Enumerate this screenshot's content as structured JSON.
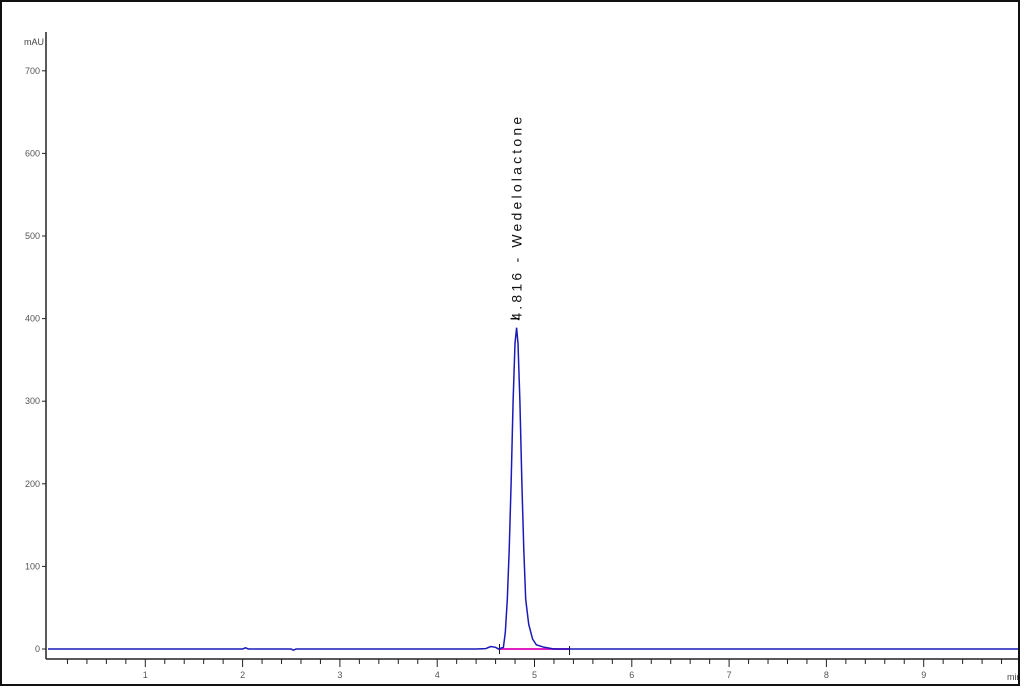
{
  "chart_data": {
    "type": "line",
    "title": "",
    "xlabel": "min",
    "ylabel": "mAU",
    "xlim": [
      0,
      10
    ],
    "ylim": [
      -5,
      740
    ],
    "x_ticks": [
      1,
      2,
      3,
      4,
      5,
      6,
      7,
      8,
      9
    ],
    "y_ticks": [
      0,
      100,
      200,
      300,
      400,
      500,
      600,
      700
    ],
    "grid": false,
    "colors": {
      "trace": "#1a1ab8",
      "baseline": "#e020c0",
      "axis": "#222222"
    },
    "series": [
      {
        "x": [
          0,
          2.0,
          2.03,
          2.06,
          2.5,
          2.52,
          2.55,
          4.4,
          4.5,
          4.55,
          4.6,
          4.63,
          4.68,
          4.7,
          4.72,
          4.74,
          4.76,
          4.78,
          4.8,
          4.816,
          4.83,
          4.85,
          4.87,
          4.89,
          4.91,
          4.94,
          4.98,
          5.02,
          5.1,
          5.2,
          10.0
        ],
        "y": [
          0,
          0,
          1.5,
          0,
          0,
          -1.5,
          0,
          0,
          0.5,
          3,
          2,
          0,
          2,
          20,
          60,
          120,
          200,
          300,
          370,
          389,
          370,
          300,
          200,
          120,
          60,
          30,
          12,
          5,
          2,
          0,
          0
        ]
      }
    ],
    "integration_baseline": {
      "start": 4.64,
      "end": 5.36
    },
    "annotations": [
      {
        "x": 4.816,
        "text": "4.816 - Wedelolactone"
      }
    ]
  }
}
